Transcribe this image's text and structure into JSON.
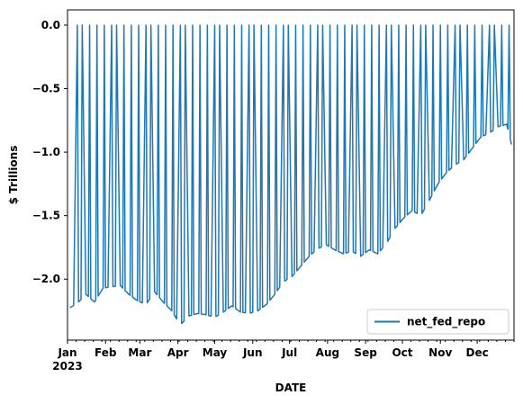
{
  "chart_data": {
    "type": "line",
    "title": "",
    "xlabel": "DATE",
    "ylabel": "$ Trillions",
    "ylim": [
      -2.48,
      0.12
    ],
    "xlim": [
      "2023-01-01",
      "2023-12-31"
    ],
    "yticks": [
      0.0,
      -0.5,
      -1.0,
      -1.5,
      -2.0
    ],
    "ytick_labels": [
      "0.0",
      "−0.5",
      "−1.0",
      "−1.5",
      "−2.0"
    ],
    "xticks": [
      {
        "date": "2023-01-01",
        "label": "Jan",
        "sublabel": "2023"
      },
      {
        "date": "2023-02-01",
        "label": "Feb"
      },
      {
        "date": "2023-03-01",
        "label": "Mar"
      },
      {
        "date": "2023-04-01",
        "label": "Apr"
      },
      {
        "date": "2023-05-01",
        "label": "May"
      },
      {
        "date": "2023-06-01",
        "label": "Jun"
      },
      {
        "date": "2023-07-01",
        "label": "Jul"
      },
      {
        "date": "2023-08-01",
        "label": "Aug"
      },
      {
        "date": "2023-09-01",
        "label": "Sep"
      },
      {
        "date": "2023-10-01",
        "label": "Oct"
      },
      {
        "date": "2023-11-01",
        "label": "Nov"
      },
      {
        "date": "2023-12-01",
        "label": "Dec"
      }
    ],
    "grid": false,
    "legend_position": "bottom-right",
    "series": [
      {
        "name": "net_fed_repo",
        "color": "#1f77b4",
        "x": [
          "2023-01-02",
          "2023-01-09",
          "2023-01-16",
          "2023-01-23",
          "2023-01-30",
          "2023-02-06",
          "2023-02-13",
          "2023-02-20",
          "2023-02-27",
          "2023-03-06",
          "2023-03-13",
          "2023-03-20",
          "2023-03-27",
          "2023-04-03",
          "2023-04-10",
          "2023-04-17",
          "2023-04-24",
          "2023-05-01",
          "2023-05-08",
          "2023-05-15",
          "2023-05-22",
          "2023-05-29",
          "2023-06-05",
          "2023-06-12",
          "2023-06-19",
          "2023-06-26",
          "2023-07-03",
          "2023-07-10",
          "2023-07-17",
          "2023-07-24",
          "2023-07-31",
          "2023-08-07",
          "2023-08-14",
          "2023-08-21",
          "2023-08-28",
          "2023-09-04",
          "2023-09-11",
          "2023-09-18",
          "2023-09-25",
          "2023-10-02",
          "2023-10-09",
          "2023-10-16",
          "2023-10-23",
          "2023-10-30",
          "2023-11-06",
          "2023-11-13",
          "2023-11-20",
          "2023-11-27",
          "2023-12-04",
          "2023-12-11",
          "2023-12-18",
          "2023-12-25",
          "2023-12-31"
        ],
        "y": [
          -2.23,
          -2.19,
          -2.12,
          -2.18,
          -2.07,
          -2.06,
          -2.05,
          -2.12,
          -2.17,
          -2.2,
          -2.1,
          -2.18,
          -2.25,
          -2.36,
          -2.29,
          -2.27,
          -2.28,
          -2.3,
          -2.26,
          -2.21,
          -2.26,
          -2.27,
          -2.25,
          -2.2,
          -2.12,
          -2.02,
          -1.98,
          -1.9,
          -1.82,
          -1.76,
          -1.73,
          -1.77,
          -1.8,
          -1.78,
          -1.82,
          -1.77,
          -1.8,
          -1.72,
          -1.6,
          -1.52,
          -1.46,
          -1.5,
          -1.38,
          -1.25,
          -1.16,
          -1.1,
          -1.06,
          -0.97,
          -0.88,
          -0.85,
          -0.8,
          -0.78,
          -1.02
        ]
      }
    ]
  }
}
